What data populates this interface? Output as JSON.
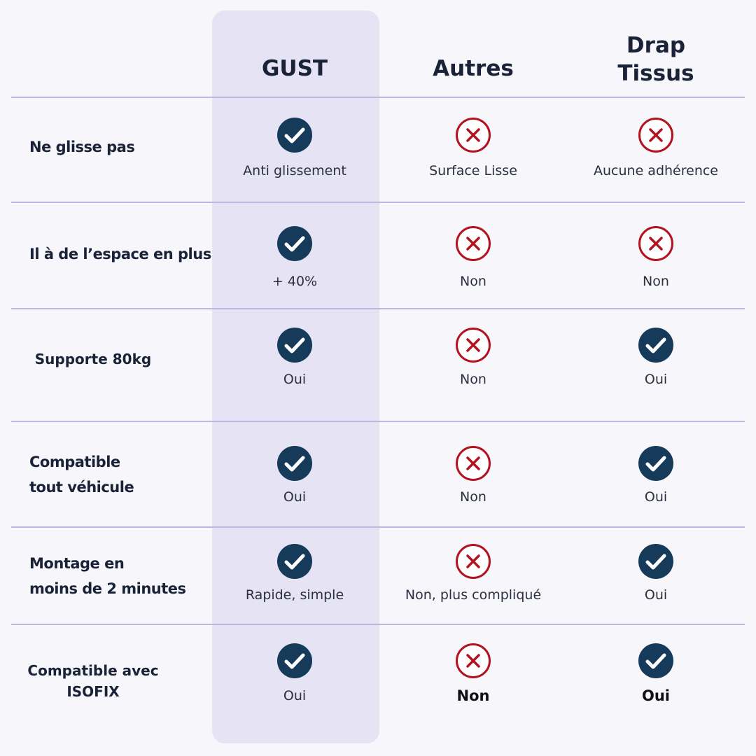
{
  "columns": [
    "GUST",
    "Autres",
    "Drap\nTissus"
  ],
  "rows": [
    {
      "label": "Ne glisse pas",
      "cells": [
        "Anti glissement",
        "Surface Lisse",
        "Aucune adhérence"
      ]
    },
    {
      "label": "Il à de l’espace en plus",
      "cells": [
        "+ 40%",
        "Non",
        "Non"
      ]
    },
    {
      "label": "Supporte 80kg",
      "cells": [
        "Oui",
        "Non",
        "Oui"
      ]
    },
    {
      "label": "Compatible\ntout véhicule",
      "cells": [
        "Oui",
        "Non",
        "Oui"
      ]
    },
    {
      "label": "Montage en\nmoins de 2 minutes",
      "cells": [
        "Rapide, simple",
        "Non, plus compliqué",
        "Oui"
      ]
    },
    {
      "label": "Compatible avec\nISOFIX",
      "cells": [
        "Oui",
        "Non",
        "Oui"
      ]
    }
  ]
}
